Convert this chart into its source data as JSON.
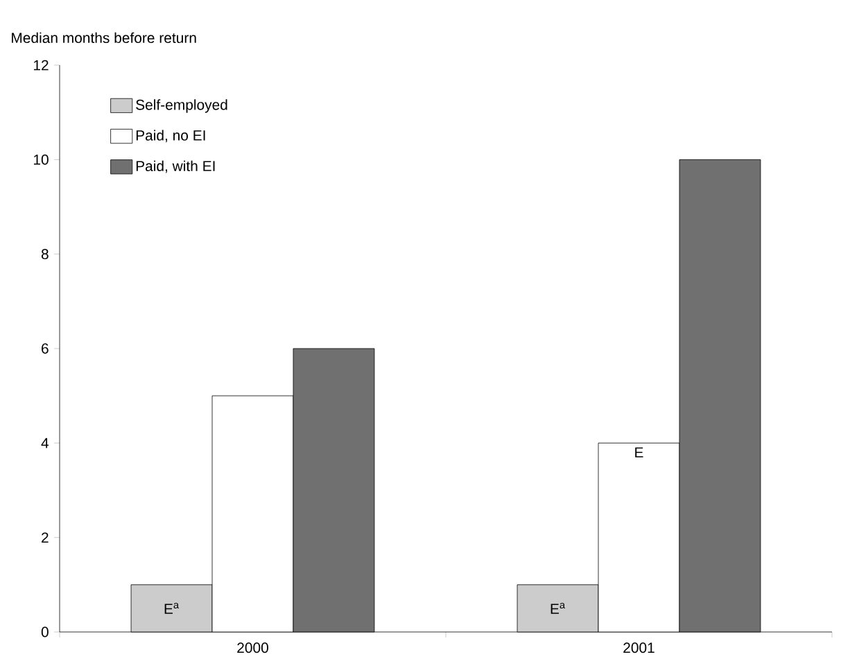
{
  "chart_data": {
    "type": "bar",
    "ylabel": "Median months before return",
    "categories": [
      "2000",
      "2001"
    ],
    "series": [
      {
        "name": "Self-employed",
        "color": "#cccccc",
        "values": [
          1,
          1
        ]
      },
      {
        "name": "Paid, no EI",
        "color": "#ffffff",
        "values": [
          5,
          4
        ]
      },
      {
        "name": "Paid, with EI",
        "color": "#707070",
        "values": [
          6,
          10
        ]
      }
    ],
    "annotations": [
      "E$^{a}$",
      "E$^{a}$",
      {
        "text": "E",
        "x": "2001",
        "y": 4
      }
    ],
    "ylim": [
      0,
      12
    ],
    "yticks": [
      0,
      2,
      4,
      6,
      8,
      10,
      12
    ],
    "grid": false,
    "legend": "top left"
  }
}
